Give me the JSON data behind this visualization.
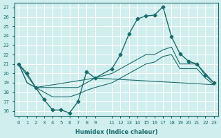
{
  "xlabel": "Humidex (Indice chaleur)",
  "ylabel": "",
  "bg_color": "#d0eeee",
  "grid_color": "#ffffff",
  "line_color": "#1a6b6b",
  "xlim": [
    -0.5,
    23.5
  ],
  "ylim": [
    15.5,
    27.5
  ],
  "yticks": [
    16,
    17,
    18,
    19,
    20,
    21,
    22,
    23,
    24,
    25,
    26,
    27
  ],
  "xticks": [
    0,
    1,
    2,
    3,
    4,
    5,
    6,
    7,
    8,
    9,
    11,
    12,
    13,
    14,
    15,
    16,
    17,
    18,
    19,
    20,
    21,
    22,
    23
  ],
  "line1_x": [
    0,
    1,
    2,
    3,
    4,
    5,
    6,
    7,
    8,
    9,
    11,
    12,
    13,
    14,
    15,
    16,
    17,
    18,
    19,
    20,
    21,
    22,
    23
  ],
  "line1_y": [
    21.0,
    20.0,
    18.5,
    17.2,
    16.1,
    16.1,
    15.8,
    17.0,
    20.2,
    19.5,
    20.5,
    22.0,
    24.2,
    25.8,
    26.1,
    26.2,
    27.1,
    23.9,
    22.1,
    21.3,
    21.0,
    19.8,
    19.0
  ],
  "line2_x": [
    0,
    1,
    2,
    3,
    4,
    5,
    6,
    7,
    8,
    9,
    11,
    12,
    13,
    14,
    15,
    16,
    17,
    18,
    19,
    20,
    21,
    22,
    23
  ],
  "line2_y": [
    21.0,
    19.0,
    18.5,
    18.5,
    18.5,
    18.5,
    18.5,
    18.5,
    19.0,
    19.5,
    20.0,
    20.5,
    21.0,
    21.5,
    22.0,
    22.0,
    22.5,
    22.8,
    21.0,
    21.0,
    21.0,
    20.0,
    19.0
  ],
  "line3_x": [
    0,
    1,
    2,
    3,
    4,
    5,
    6,
    7,
    8,
    9,
    11,
    12,
    13,
    14,
    15,
    16,
    17,
    18,
    19,
    20,
    21,
    22,
    23
  ],
  "line3_y": [
    21.0,
    19.0,
    18.5,
    18.0,
    17.5,
    17.5,
    17.5,
    17.8,
    18.2,
    18.5,
    19.0,
    19.5,
    20.0,
    20.5,
    21.0,
    21.2,
    21.8,
    22.0,
    20.5,
    20.5,
    20.5,
    19.5,
    18.8
  ],
  "line4_x": [
    0,
    2,
    9,
    23
  ],
  "line4_y": [
    21.0,
    18.5,
    19.5,
    18.8
  ]
}
